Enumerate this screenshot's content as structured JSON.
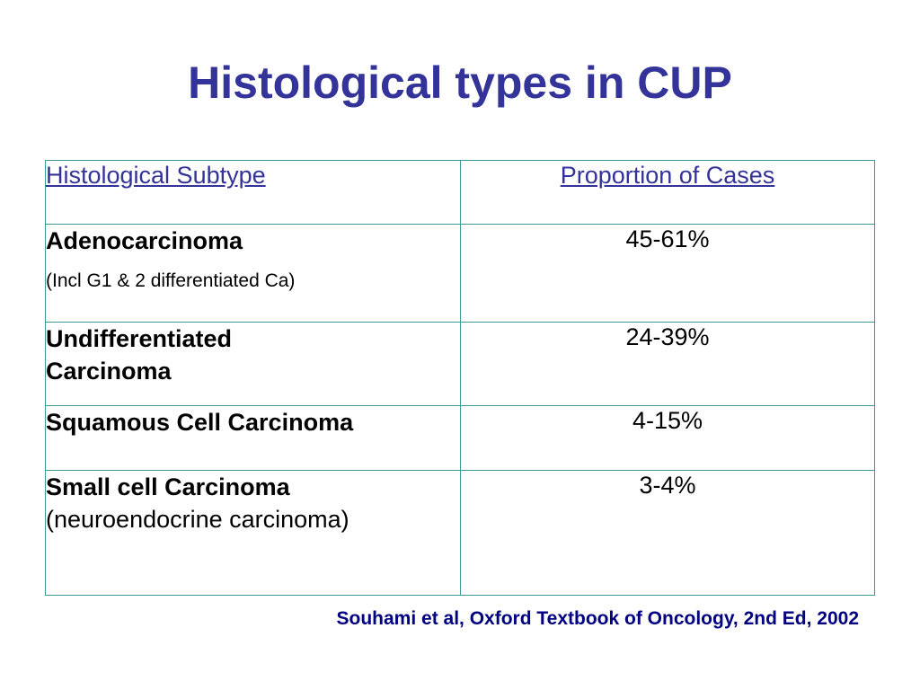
{
  "slide": {
    "title": "Histological types in CUP",
    "citation": "Souhami et al, Oxford Textbook of Oncology, 2nd Ed, 2002"
  },
  "table": {
    "headers": [
      "Histological Subtype",
      "Proportion of Cases"
    ],
    "rows": [
      {
        "subtype": "Adenocarcinoma",
        "note": "(Incl G1 & 2  differentiated Ca)",
        "proportion": "45-61%"
      },
      {
        "subtype": "Undifferentiated Carcinoma",
        "note": "",
        "proportion": "24-39%"
      },
      {
        "subtype": "Squamous Cell Carcinoma",
        "note": "",
        "proportion": "4-15%"
      },
      {
        "subtype": "Small cell Carcinoma",
        "note": "(neuroendocrine carcinoma)",
        "proportion": "3-4%"
      }
    ]
  },
  "colors": {
    "title": "#333399",
    "border": "#3d9b95",
    "citation": "#000080"
  }
}
